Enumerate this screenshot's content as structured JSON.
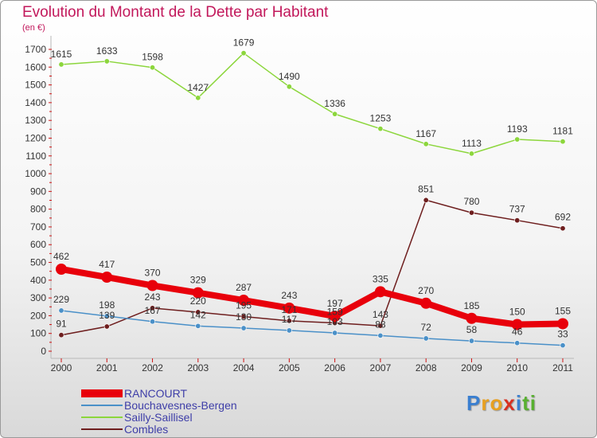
{
  "title": "Evolution du Montant de la Dette par Habitant",
  "unit": "(en €)",
  "chart_data": {
    "type": "line",
    "title": "Evolution du Montant de la Dette par Habitant",
    "ylabel": "(en €)",
    "xlabel": "",
    "x": [
      "2000",
      "2001",
      "2002",
      "2003",
      "2004",
      "2005",
      "2006",
      "2007",
      "2008",
      "2009",
      "2010",
      "2011"
    ],
    "ylim": [
      0,
      1700
    ],
    "yticks": [
      0,
      100,
      200,
      300,
      400,
      500,
      600,
      700,
      800,
      900,
      1000,
      1100,
      1200,
      1300,
      1400,
      1500,
      1600,
      1700
    ],
    "grid": false,
    "legend": "bottom-left",
    "series": [
      {
        "name": "RANCOURT",
        "color": "#e8000b",
        "values": [
          462,
          417,
          370,
          329,
          287,
          243,
          197,
          335,
          270,
          185,
          150,
          155
        ]
      },
      {
        "name": "Bouchavesnes-Bergen",
        "color": "#4a90c8",
        "values": [
          229,
          198,
          167,
          142,
          130,
          117,
          103,
          88,
          72,
          58,
          46,
          33
        ]
      },
      {
        "name": "Sailly-Saillisel",
        "color": "#8cd63c",
        "values": [
          1615,
          1633,
          1598,
          1427,
          1679,
          1490,
          1336,
          1253,
          1167,
          1113,
          1193,
          1181
        ]
      },
      {
        "name": "Combles",
        "color": "#6e1e1e",
        "values": [
          91,
          139,
          243,
          220,
          195,
          171,
          159,
          143,
          851,
          780,
          737,
          692
        ]
      }
    ]
  },
  "legend": [
    "RANCOURT",
    "Bouchavesnes-Bergen",
    "Sailly-Saillisel",
    "Combles"
  ],
  "logo": {
    "letters": [
      "P",
      "r",
      "o",
      "x",
      "i",
      "t",
      "i"
    ],
    "colors": [
      "#3a7fd0",
      "#e8a020",
      "#e8a020",
      "#d83020",
      "#3a7fd0",
      "#58b030",
      "#58b030"
    ]
  }
}
